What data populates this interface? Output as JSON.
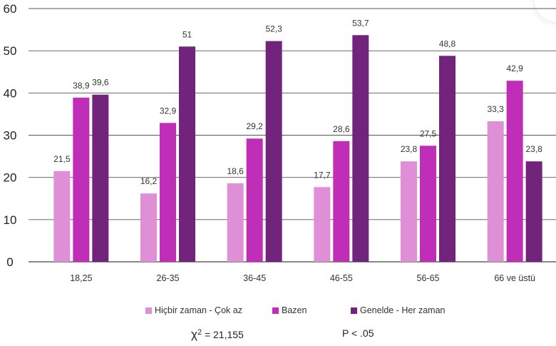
{
  "chart_data": {
    "type": "bar",
    "categories": [
      "18,25",
      "26-35",
      "36-45",
      "46-55",
      "56-65",
      "66 ve üstü"
    ],
    "series": [
      {
        "name": "Hiçbir zaman - Çok az",
        "color": "#df8fd6",
        "values": [
          21.5,
          16.2,
          18.6,
          17.7,
          23.8,
          33.3
        ],
        "labels": [
          "21,5",
          "16,2",
          "18,6",
          "17,7",
          "23,8",
          "33,3"
        ]
      },
      {
        "name": "Bazen",
        "color": "#c02db6",
        "values": [
          38.9,
          32.9,
          29.2,
          28.6,
          27.5,
          42.9
        ],
        "labels": [
          "38,9",
          "32,9",
          "29,2",
          "28,6",
          "27,5",
          "42,9"
        ]
      },
      {
        "name": "Genelde - Her zaman",
        "color": "#72237b",
        "values": [
          39.6,
          51,
          52.3,
          53.7,
          48.8,
          23.8
        ],
        "labels": [
          "39,6",
          "51",
          "52,3",
          "53,7",
          "48,8",
          "23,8"
        ]
      }
    ],
    "yticks": [
      0,
      10,
      20,
      30,
      40,
      50,
      60
    ],
    "ylim": [
      0,
      60
    ],
    "grid": true,
    "legend": "bottom"
  },
  "stats": {
    "chi_symbol": "χ",
    "chi_exp": "2",
    "chi_value": " = 21,155",
    "p_value": "P < .05"
  }
}
